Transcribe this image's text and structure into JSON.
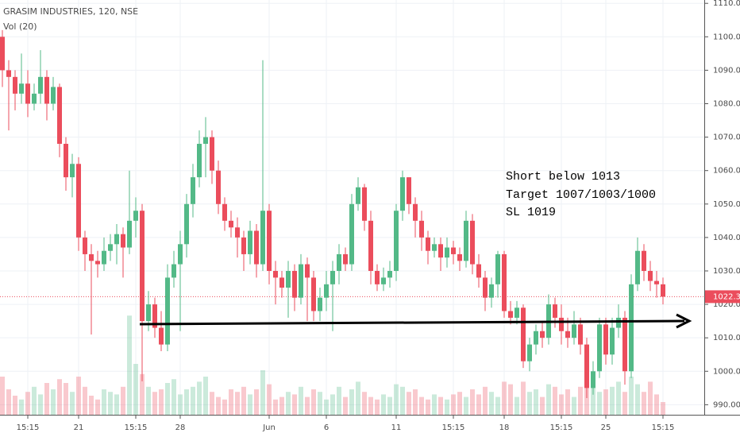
{
  "chart_data": {
    "type": "candlestick",
    "title": "GRASIM INDUSTRIES, 120, NSE",
    "volume_label": "Vol (20)",
    "annotations": [
      "Short below 1013",
      "Target 1007/1003/1000",
      "SL 1019"
    ],
    "categories": [
      null,
      null,
      null,
      null,
      "15:15",
      null,
      null,
      null,
      null,
      null,
      null,
      null,
      "21",
      null,
      null,
      null,
      null,
      null,
      null,
      null,
      null,
      "15:15",
      null,
      null,
      null,
      null,
      null,
      null,
      "28",
      null,
      null,
      null,
      null,
      null,
      null,
      null,
      null,
      null,
      null,
      null,
      null,
      null,
      "Jun",
      null,
      null,
      null,
      null,
      null,
      null,
      null,
      null,
      "6",
      null,
      null,
      null,
      null,
      null,
      null,
      null,
      null,
      null,
      null,
      "11",
      null,
      null,
      null,
      null,
      null,
      null,
      null,
      null,
      "15:15",
      null,
      null,
      null,
      null,
      null,
      null,
      null,
      "18",
      null,
      null,
      null,
      null,
      null,
      null,
      null,
      null,
      "15:15",
      null,
      null,
      null,
      null,
      null,
      null,
      "25",
      null,
      null,
      null,
      null,
      null,
      null,
      null,
      null,
      "15:15"
    ],
    "open": [
      1100,
      1090,
      1088,
      1083,
      1086,
      1080,
      1083,
      1088,
      1080,
      1085,
      1068,
      1058,
      1062,
      1040,
      1035,
      1033,
      1032,
      1036,
      1038,
      1041,
      1037,
      1045,
      1048,
      1015,
      1020,
      1013,
      1008,
      1028,
      1032,
      1038,
      1050,
      1058,
      1068,
      1070,
      1060,
      1050,
      1045,
      1043,
      1040,
      1035,
      1042,
      1032,
      1048,
      1030,
      1028,
      1025,
      1030,
      1022,
      1032,
      1028,
      1018,
      1022,
      1026,
      1030,
      1035,
      1032,
      1050,
      1055,
      1045,
      1030,
      1026,
      1028,
      1030,
      1048,
      1058,
      1050,
      1045,
      1040,
      1036,
      1038,
      1034,
      1037,
      1035,
      1033,
      1045,
      1032,
      1028,
      1022,
      1026,
      1035,
      1018,
      1016,
      1019,
      1003,
      1008,
      1012,
      1010,
      1020,
      1016,
      1012,
      1010,
      1014,
      1008,
      995,
      1000,
      1014,
      1005,
      1013,
      1016,
      1000,
      1026,
      1036,
      1030,
      1027,
      1026
    ],
    "high": [
      1102,
      1093,
      1090,
      1095,
      1090,
      1086,
      1096,
      1090,
      1088,
      1086,
      1070,
      1065,
      1064,
      1042,
      1038,
      1036,
      1040,
      1041,
      1044,
      1043,
      1060,
      1052,
      1050,
      1024,
      1022,
      1018,
      1032,
      1036,
      1042,
      1053,
      1062,
      1072,
      1076,
      1072,
      1063,
      1052,
      1048,
      1046,
      1042,
      1045,
      1044,
      1093,
      1050,
      1033,
      1030,
      1033,
      1032,
      1035,
      1034,
      1030,
      1025,
      1030,
      1033,
      1038,
      1037,
      1053,
      1058,
      1056,
      1048,
      1032,
      1031,
      1033,
      1050,
      1060,
      1058,
      1052,
      1048,
      1042,
      1040,
      1040,
      1040,
      1039,
      1037,
      1048,
      1047,
      1035,
      1030,
      1028,
      1036,
      1036,
      1021,
      1021,
      1020,
      1010,
      1014,
      1015,
      1023,
      1022,
      1020,
      1016,
      1018,
      1016,
      1010,
      1003,
      1016,
      1016,
      1016,
      1020,
      1018,
      1029,
      1040,
      1038,
      1033,
      1030,
      1028
    ],
    "low": [
      1085,
      1072,
      1078,
      1080,
      1076,
      1078,
      1080,
      1075,
      1078,
      1064,
      1054,
      1052,
      1036,
      1030,
      1011,
      1028,
      1030,
      1033,
      1032,
      1028,
      1035,
      1040,
      997,
      1012,
      1010,
      1006,
      1006,
      1025,
      1012,
      1034,
      1046,
      1055,
      1058,
      1056,
      1047,
      1042,
      1040,
      1034,
      1030,
      1032,
      1028,
      1030,
      1026,
      1020,
      1022,
      1016,
      1018,
      1020,
      1015,
      1015,
      1015,
      1018,
      1012,
      1026,
      1030,
      1030,
      1048,
      1042,
      1026,
      1024,
      1024,
      1025,
      1027,
      1045,
      1047,
      1040,
      1036,
      1032,
      1034,
      1030,
      1031,
      1032,
      1030,
      1031,
      1029,
      1025,
      1018,
      1019,
      1022,
      1016,
      1014,
      1014,
      1001,
      1000,
      1005,
      1007,
      1008,
      1013,
      1008,
      1007,
      1008,
      1005,
      992,
      993,
      998,
      1002,
      1002,
      1010,
      996,
      998,
      1024,
      1027,
      1024,
      1022,
      1020
    ],
    "close": [
      1090,
      1088,
      1083,
      1086,
      1080,
      1083,
      1088,
      1080,
      1085,
      1068,
      1058,
      1062,
      1040,
      1035,
      1033,
      1032,
      1036,
      1038,
      1041,
      1037,
      1045,
      1048,
      1015,
      1020,
      1013,
      1008,
      1028,
      1032,
      1038,
      1050,
      1058,
      1068,
      1070,
      1060,
      1050,
      1045,
      1043,
      1040,
      1035,
      1042,
      1032,
      1048,
      1030,
      1028,
      1025,
      1030,
      1022,
      1032,
      1028,
      1018,
      1022,
      1026,
      1030,
      1035,
      1032,
      1050,
      1055,
      1045,
      1030,
      1026,
      1028,
      1030,
      1048,
      1058,
      1050,
      1045,
      1040,
      1036,
      1038,
      1034,
      1037,
      1035,
      1033,
      1045,
      1032,
      1028,
      1022,
      1026,
      1035,
      1018,
      1016,
      1019,
      1003,
      1008,
      1012,
      1010,
      1020,
      1016,
      1012,
      1010,
      1014,
      1008,
      995,
      1000,
      1014,
      1005,
      1013,
      1016,
      1000,
      1026,
      1036,
      1030,
      1027,
      1026,
      1022.3
    ],
    "volume": [
      30,
      20,
      15,
      12,
      18,
      22,
      16,
      25,
      20,
      28,
      25,
      18,
      30,
      22,
      15,
      12,
      20,
      18,
      16,
      22,
      78,
      40,
      32,
      22,
      18,
      20,
      25,
      28,
      16,
      20,
      22,
      26,
      30,
      18,
      14,
      12,
      20,
      18,
      22,
      16,
      20,
      35,
      24,
      12,
      14,
      18,
      16,
      22,
      14,
      20,
      18,
      12,
      16,
      22,
      14,
      20,
      26,
      18,
      14,
      12,
      16,
      14,
      24,
      22,
      18,
      20,
      14,
      12,
      16,
      14,
      12,
      16,
      18,
      14,
      20,
      16,
      22,
      18,
      14,
      26,
      24,
      14,
      26,
      18,
      20,
      14,
      24,
      22,
      16,
      20,
      14,
      22,
      28,
      30,
      18,
      20,
      22,
      26,
      18,
      30,
      24,
      18,
      26,
      16,
      10
    ],
    "vlim": [
      0,
      100
    ],
    "last_price": {
      "value": 1022.3,
      "label": "1022.30"
    },
    "up_color": "#53b987",
    "down_color": "#eb4d5c",
    "ylim": [
      987,
      1111
    ],
    "yticks": [
      {
        "value": 990,
        "label": "990.00"
      },
      {
        "value": 1000,
        "label": "1000.00"
      },
      {
        "value": 1010,
        "label": "1010.00"
      },
      {
        "value": 1020,
        "label": "1020.00"
      },
      {
        "value": 1030,
        "label": "1030.00"
      },
      {
        "value": 1040,
        "label": "1040.00"
      },
      {
        "value": 1050,
        "label": "1050.00"
      },
      {
        "value": 1060,
        "label": "1060.00"
      },
      {
        "value": 1070,
        "label": "1070.00"
      },
      {
        "value": 1080,
        "label": "1080.00"
      },
      {
        "value": 1090,
        "label": "1090.00"
      },
      {
        "value": 1100,
        "label": "1100.00"
      },
      {
        "value": 1110,
        "label": "1110.00"
      }
    ],
    "grid": true
  }
}
